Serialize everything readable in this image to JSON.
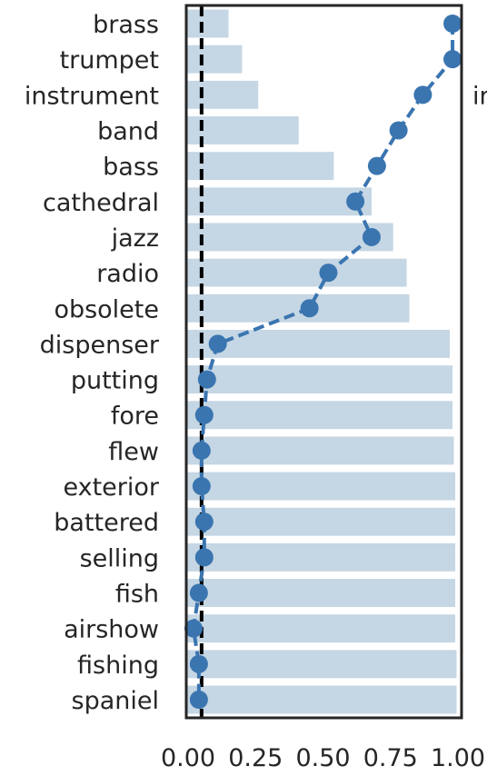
{
  "chart_data": {
    "type": "bar",
    "categories": [
      "brass",
      "trumpet",
      "instrument",
      "band",
      "bass",
      "cathedral",
      "jazz",
      "radio",
      "obsolete",
      "dispenser",
      "putting",
      "fore",
      "flew",
      "exterior",
      "battered",
      "selling",
      "fish",
      "airshow",
      "fishing",
      "spaniel"
    ],
    "series": [
      {
        "type": "bar",
        "values": [
          0.15,
          0.2,
          0.26,
          0.41,
          0.54,
          0.68,
          0.76,
          0.81,
          0.82,
          0.97,
          0.98,
          0.98,
          0.985,
          0.99,
          0.99,
          0.99,
          0.99,
          0.99,
          0.995,
          0.995
        ],
        "color": "#c5d6e4"
      },
      {
        "type": "line",
        "values": [
          0.98,
          0.98,
          0.87,
          0.78,
          0.7,
          0.62,
          0.68,
          0.52,
          0.45,
          0.11,
          0.07,
          0.06,
          0.05,
          0.05,
          0.06,
          0.06,
          0.04,
          0.02,
          0.04,
          0.04
        ],
        "color": "#3a75b0",
        "style": "dashed",
        "marker": "circle"
      }
    ],
    "reference_line": {
      "x": 0.05,
      "color": "#000000",
      "style": "dashed",
      "orientation": "vertical"
    },
    "xlim": [
      0.0,
      1.0
    ],
    "xticks": [
      "0.00",
      "0.25",
      "0.50",
      "0.75",
      "1.00"
    ],
    "grid": false,
    "side_text": "in"
  }
}
